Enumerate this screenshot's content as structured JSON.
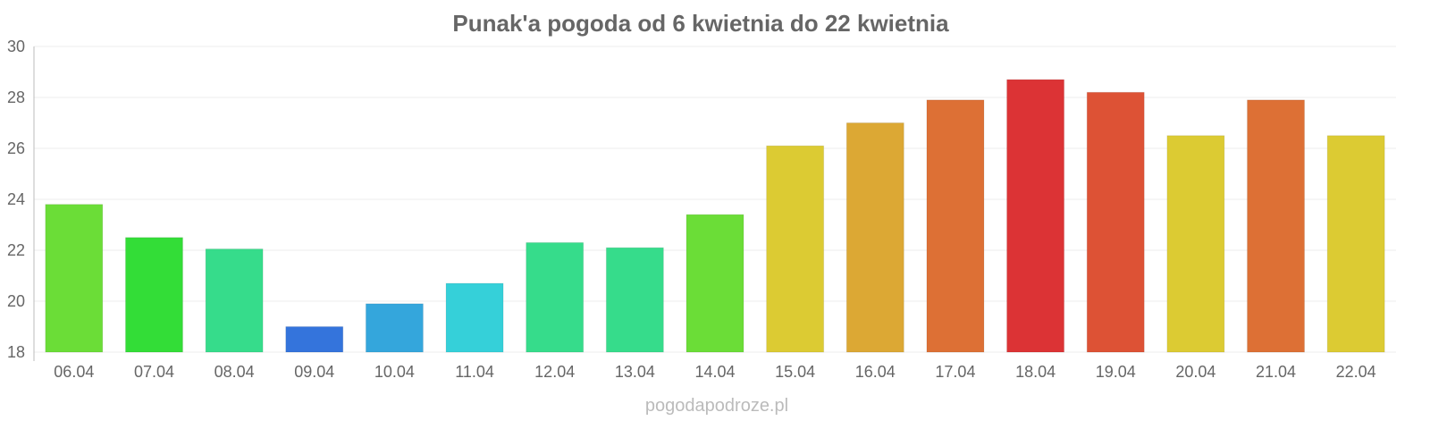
{
  "chart_data": {
    "type": "bar",
    "title": "Punak'a pogoda od 6 kwietnia do 22 kwietnia",
    "xlabel": "",
    "ylabel": "",
    "ylim": [
      18,
      30
    ],
    "yticks": [
      18,
      20,
      22,
      24,
      26,
      28,
      30
    ],
    "grid": true,
    "categories": [
      "06.04",
      "07.04",
      "08.04",
      "09.04",
      "10.04",
      "11.04",
      "12.04",
      "13.04",
      "14.04",
      "15.04",
      "16.04",
      "17.04",
      "18.04",
      "19.04",
      "20.04",
      "21.04",
      "22.04"
    ],
    "values": [
      23.8,
      22.5,
      22.05,
      19.0,
      19.9,
      20.7,
      22.3,
      22.1,
      23.4,
      26.1,
      27.0,
      27.9,
      28.7,
      28.2,
      26.5,
      27.9,
      26.5
    ],
    "colors": [
      "#6bdd37",
      "#33dd37",
      "#36dc8b",
      "#3474dc",
      "#34a6dc",
      "#35d0d9",
      "#36dc8b",
      "#36dc8b",
      "#6bdd37",
      "#dccb33",
      "#dca834",
      "#dd7035",
      "#dc3335",
      "#dd5235",
      "#dccb33",
      "#dd7035",
      "#dccb33"
    ]
  },
  "watermark": "pogodapodroze.pl"
}
